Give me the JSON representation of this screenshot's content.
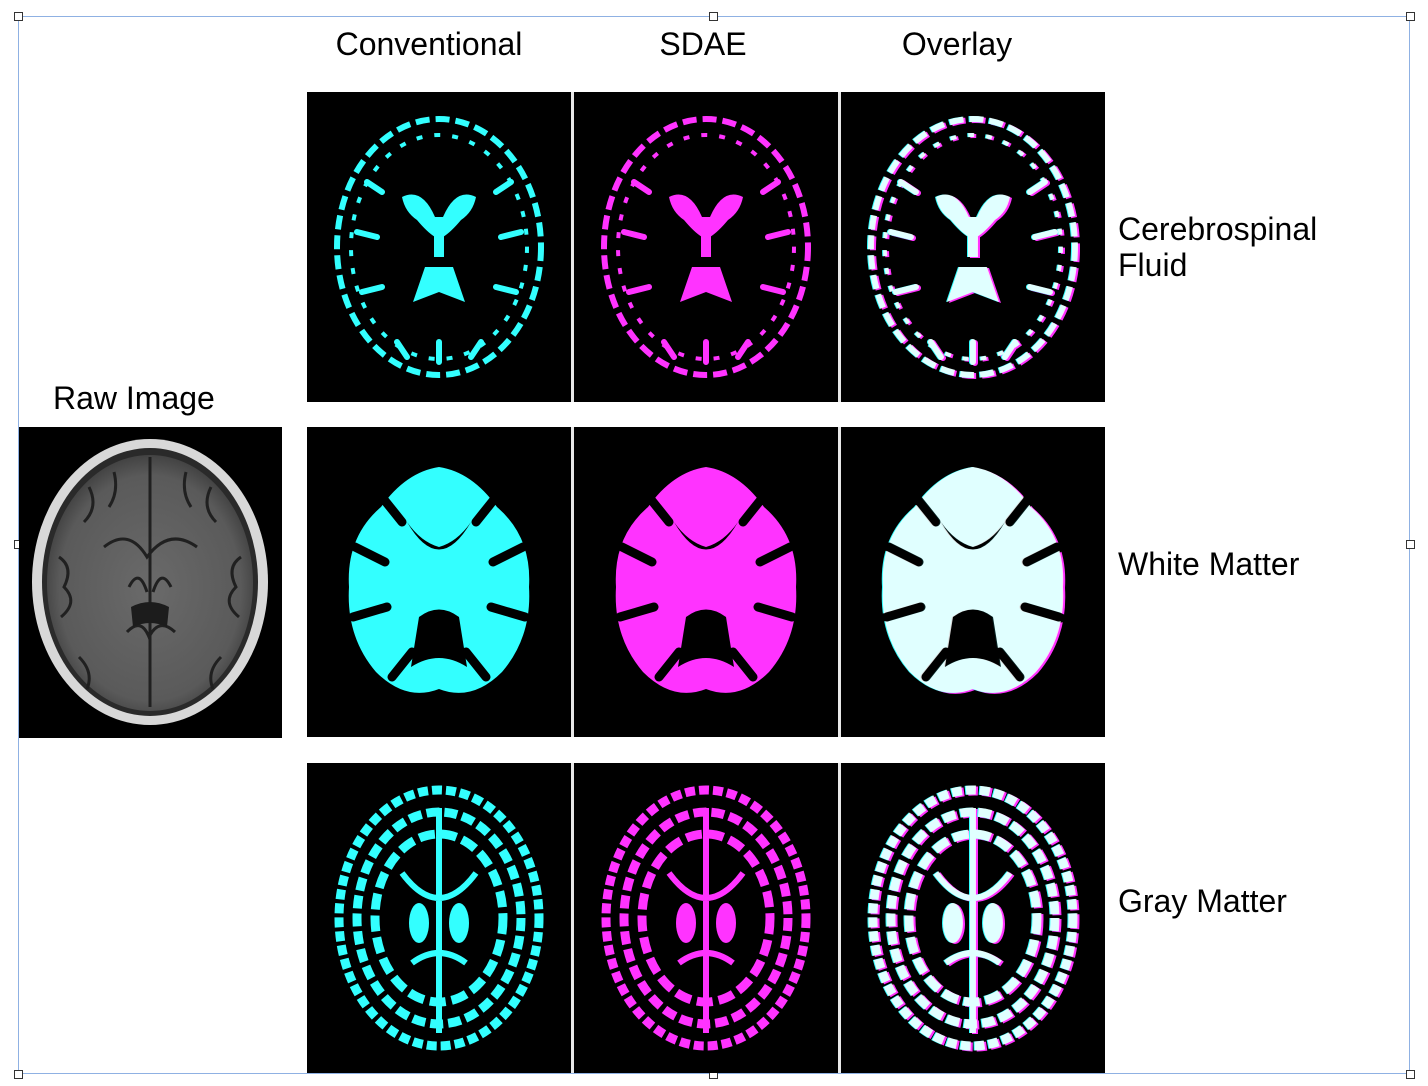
{
  "raw_label": "Raw Image",
  "columns": [
    "Conventional",
    "SDAE",
    "Overlay"
  ],
  "rows": [
    "Cerebrospinal\nFluid",
    "White Matter",
    "Gray Matter"
  ],
  "colors": {
    "conventional": "#33ffff",
    "sdae": "#ff33ff",
    "overlay": "#ffffff",
    "panel_background": "#000000"
  }
}
